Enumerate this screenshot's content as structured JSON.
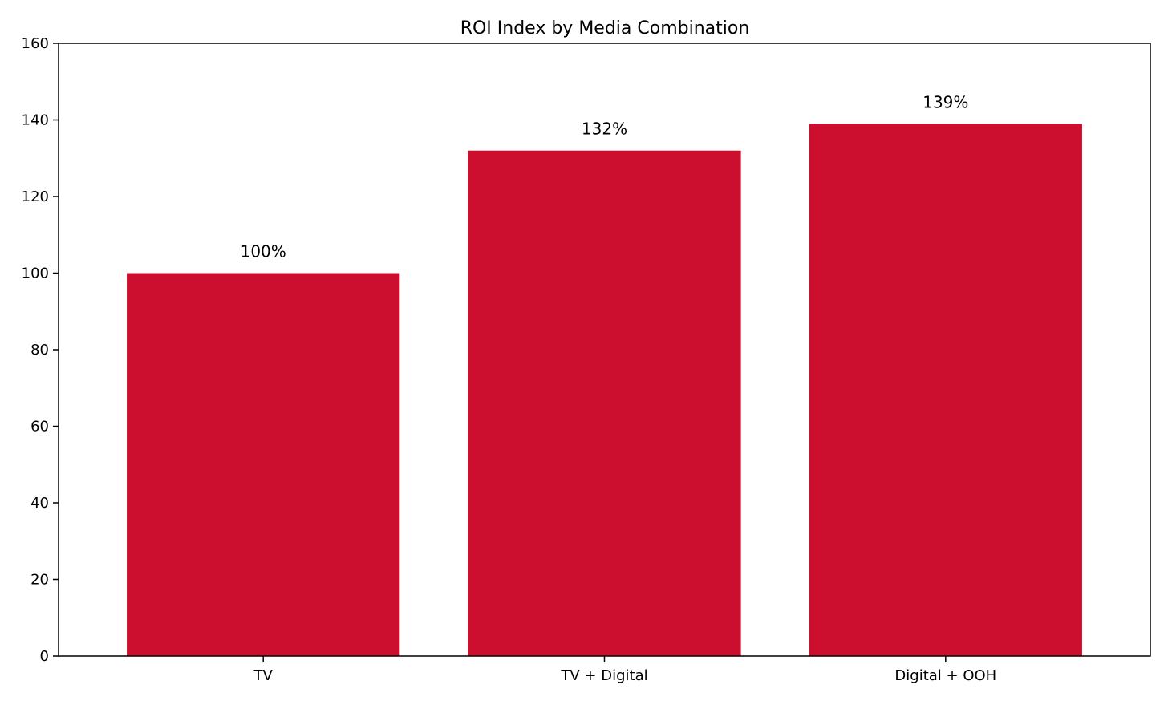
{
  "chart_data": {
    "type": "bar",
    "title": "ROI Index by Media Combination",
    "xlabel": "",
    "ylabel": "",
    "categories": [
      "TV",
      "TV + Digital",
      "Digital + OOH"
    ],
    "values": [
      100,
      132,
      139
    ],
    "data_labels": [
      "100%",
      "132%",
      "139%"
    ],
    "ylim": [
      0,
      160
    ],
    "yticks": [
      0,
      20,
      40,
      60,
      80,
      100,
      120,
      140,
      160
    ],
    "ytick_labels": [
      "0",
      "20",
      "40",
      "60",
      "80",
      "100",
      "120",
      "140",
      "160"
    ],
    "bar_color": "#cc0f2e",
    "grid": false,
    "legend": "none"
  }
}
